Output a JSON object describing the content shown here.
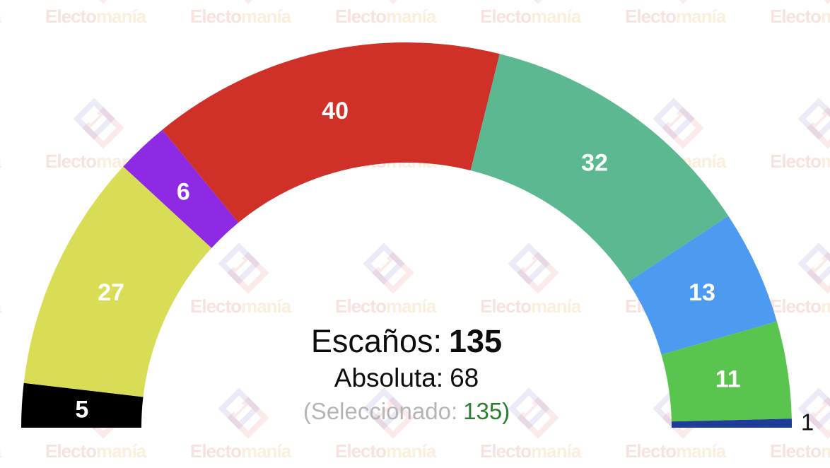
{
  "watermark": {
    "brand_part1": "Electo",
    "brand_part2": "manía"
  },
  "summary": {
    "seats_label": "Escaños:",
    "seats_value": "135",
    "majority_label": "Absoluta:",
    "majority_value": "68",
    "selected_prefix": "(Seleccionado:",
    "selected_value": "135",
    "selected_suffix": ")"
  },
  "chart_data": {
    "type": "hemicycle",
    "description": "Semicircular half-donut parliament seat arc drawn left to right; seat count labels printed inside each segment, tiny last segment labeled outside",
    "total_seats": 135,
    "majority_threshold": 68,
    "selected_seats": 135,
    "series": [
      {
        "id": "black",
        "seats": 5,
        "color": "#000000"
      },
      {
        "id": "yellow",
        "seats": 27,
        "color": "#d9dc55"
      },
      {
        "id": "purple",
        "seats": 6,
        "color": "#8e2ae3"
      },
      {
        "id": "red",
        "seats": 40,
        "color": "#cf3028"
      },
      {
        "id": "teal",
        "seats": 32,
        "color": "#5bb890"
      },
      {
        "id": "blue",
        "seats": 13,
        "color": "#4d9af1"
      },
      {
        "id": "green",
        "seats": 11,
        "color": "#5ac54e"
      },
      {
        "id": "navy",
        "seats": 1,
        "color": "#1e3d99",
        "label_outside": true
      }
    ],
    "label_color_inside": "#ffffff",
    "label_color_outside": "#111111",
    "legend": "none",
    "axes": "none"
  }
}
